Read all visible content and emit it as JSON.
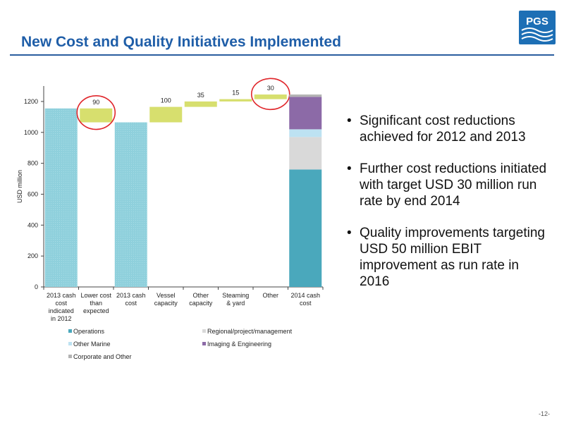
{
  "slide": {
    "title": "New Cost and Quality Initiatives Implemented",
    "logo_text": "PGS",
    "page_number": "-12-",
    "bullets": [
      "Significant cost reductions achieved for 2012 and 2013",
      "Further cost reductions initiated with target USD 30 million run rate by end 2014",
      "Quality improvements targeting USD 50 million EBIT improvement as run rate in 2016"
    ]
  },
  "colors": {
    "title": "#1f5ea8",
    "cost_bar": "#8fd0dc",
    "step_bar": "#d7df6e",
    "circle": "#e0262b",
    "operations": "#4aa8bc",
    "regional": "#d9d9d9",
    "other_marine": "#bde2f2",
    "imaging": "#8c6aa7",
    "corporate": "#b3b3b3"
  },
  "chart_data": {
    "type": "bar",
    "subtype": "waterfall",
    "ylabel": "USD million",
    "ylim": [
      0,
      1300
    ],
    "yticks": [
      0,
      200,
      400,
      600,
      800,
      1000,
      1200
    ],
    "categories": [
      [
        "2013 cash",
        "cost",
        "indicated",
        "in 2012"
      ],
      [
        "Lower cost",
        "than",
        "expected"
      ],
      [
        "2013 cash",
        "cost"
      ],
      [
        "Vessel",
        "capacity"
      ],
      [
        "Other",
        "capacity"
      ],
      [
        "Steaming",
        "& yard"
      ],
      [
        "Other"
      ],
      [
        "2014 cash",
        "cost"
      ]
    ],
    "bars": [
      {
        "kind": "total",
        "base": 0,
        "value": 1155
      },
      {
        "kind": "step",
        "base": 1065,
        "value": 90,
        "label": "90",
        "circled": true
      },
      {
        "kind": "total",
        "base": 0,
        "value": 1065
      },
      {
        "kind": "step",
        "base": 1065,
        "value": 100,
        "label": "100"
      },
      {
        "kind": "step",
        "base": 1165,
        "value": 35,
        "label": "35"
      },
      {
        "kind": "step",
        "base": 1200,
        "value": 15,
        "label": "15"
      },
      {
        "kind": "step",
        "base": 1215,
        "value": 30,
        "label": "30",
        "circled": true
      },
      {
        "kind": "stack",
        "segments": [
          {
            "name": "Operations",
            "value": 760
          },
          {
            "name": "Regional/project/management",
            "value": 210
          },
          {
            "name": "Other Marine",
            "value": 50
          },
          {
            "name": "Imaging & Engineering",
            "value": 210
          },
          {
            "name": "Corporate and Other",
            "value": 15
          }
        ]
      }
    ],
    "legend": [
      {
        "name": "Operations",
        "color_key": "operations"
      },
      {
        "name": "Regional/project/management",
        "color_key": "regional"
      },
      {
        "name": "Other Marine",
        "color_key": "other_marine"
      },
      {
        "name": "Imaging & Engineering",
        "color_key": "imaging"
      },
      {
        "name": "Corporate and Other",
        "color_key": "corporate"
      }
    ],
    "legend_position": "bottom",
    "grid": false
  }
}
